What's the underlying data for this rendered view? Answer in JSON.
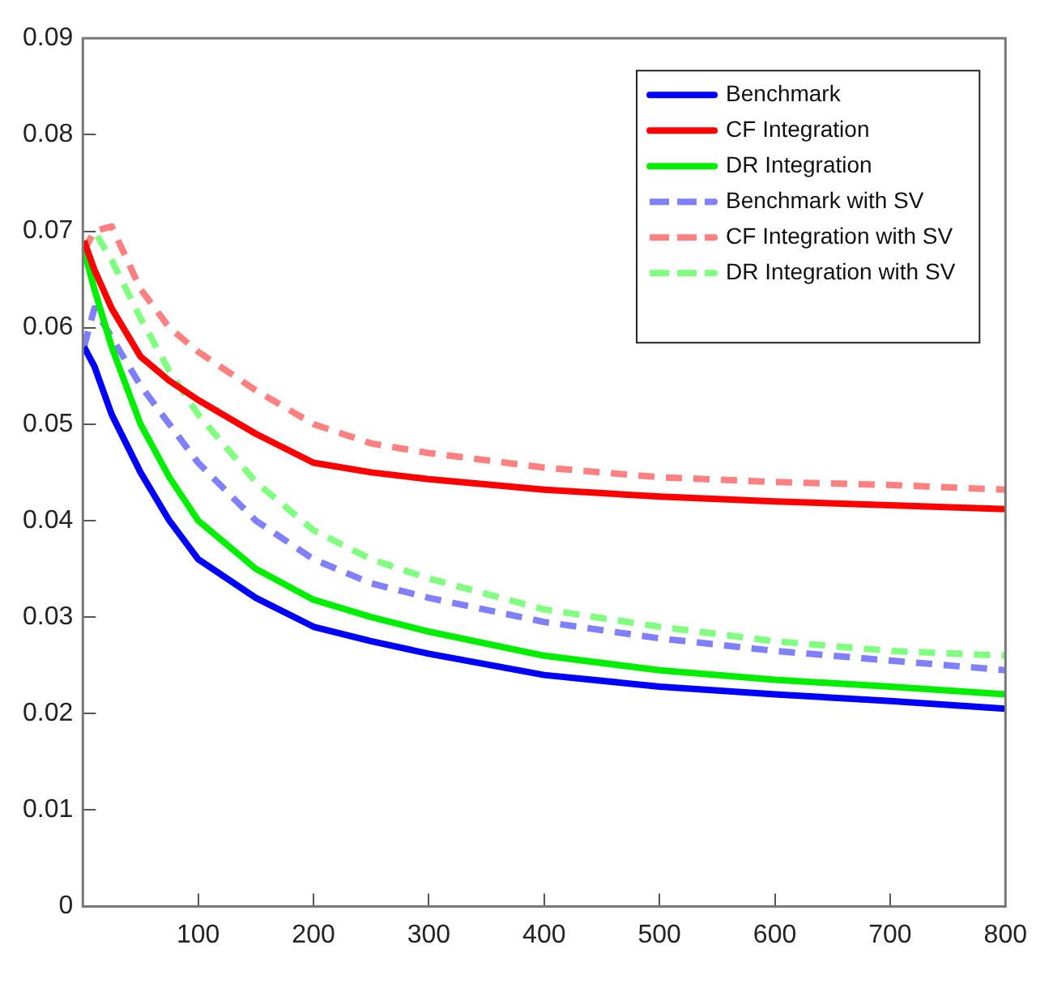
{
  "chart_data": {
    "type": "line",
    "xlim": [
      0,
      800
    ],
    "xticks": [
      100,
      200,
      300,
      400,
      500,
      600,
      700,
      800
    ],
    "ylim": [
      0,
      0.09
    ],
    "yticks": [
      0,
      0.01,
      0.02,
      0.03,
      0.04,
      0.05,
      0.06,
      0.07,
      0.08,
      0.09
    ],
    "grid": false,
    "legend": "top right",
    "marker": "none",
    "x": [
      1,
      10,
      25,
      50,
      75,
      100,
      150,
      200,
      250,
      300,
      400,
      500,
      600,
      700,
      800
    ],
    "series": [
      {
        "name": "Benchmark",
        "color": "#0000ff",
        "line_style": "solid",
        "values": [
          0.058,
          0.056,
          0.051,
          0.045,
          0.04,
          0.036,
          0.032,
          0.029,
          0.0275,
          0.0262,
          0.024,
          0.0228,
          0.022,
          0.0213,
          0.0205
        ]
      },
      {
        "name": "CF Integration",
        "color": "#ff0000",
        "line_style": "solid",
        "values": [
          0.069,
          0.066,
          0.062,
          0.057,
          0.0545,
          0.0525,
          0.049,
          0.046,
          0.045,
          0.0443,
          0.0432,
          0.0425,
          0.042,
          0.0416,
          0.0412
        ]
      },
      {
        "name": "DR Integration",
        "color": "#00ee00",
        "line_style": "solid",
        "values": [
          0.068,
          0.064,
          0.058,
          0.05,
          0.0445,
          0.04,
          0.035,
          0.0318,
          0.03,
          0.0285,
          0.026,
          0.0245,
          0.0235,
          0.0228,
          0.022
        ]
      },
      {
        "name": "Benchmark with SV",
        "color": "#8080ff",
        "line_style": "dashed",
        "values": [
          0.058,
          0.062,
          0.059,
          0.054,
          0.05,
          0.046,
          0.04,
          0.036,
          0.0335,
          0.032,
          0.0295,
          0.0278,
          0.0265,
          0.0255,
          0.0245
        ]
      },
      {
        "name": "CF Integration with SV",
        "color": "#ff8080",
        "line_style": "dashed",
        "values": [
          0.068,
          0.07,
          0.0705,
          0.064,
          0.06,
          0.0575,
          0.0535,
          0.05,
          0.048,
          0.047,
          0.0455,
          0.0445,
          0.044,
          0.0437,
          0.0432
        ]
      },
      {
        "name": "DR Integration with SV",
        "color": "#80ff80",
        "line_style": "dashed",
        "values": [
          0.068,
          0.07,
          0.067,
          0.061,
          0.0555,
          0.051,
          0.044,
          0.039,
          0.036,
          0.034,
          0.0308,
          0.029,
          0.0275,
          0.0265,
          0.026
        ]
      }
    ]
  }
}
